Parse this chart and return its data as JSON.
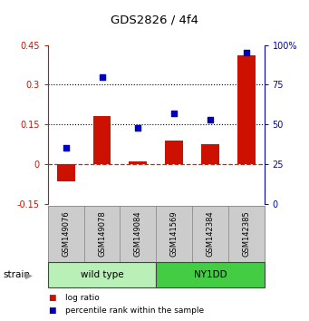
{
  "title": "GDS2826 / 4f4",
  "samples": [
    "GSM149076",
    "GSM149078",
    "GSM149084",
    "GSM141569",
    "GSM142384",
    "GSM142385"
  ],
  "log_ratios": [
    -0.065,
    0.18,
    0.01,
    0.09,
    0.075,
    0.41
  ],
  "percentile_ranks": [
    35,
    80,
    48,
    57,
    53,
    95
  ],
  "groups": [
    {
      "label": "wild type",
      "indices": [
        0,
        1,
        2
      ],
      "color": "#b8f0b8"
    },
    {
      "label": "NY1DD",
      "indices": [
        3,
        4,
        5
      ],
      "color": "#44cc44"
    }
  ],
  "ylim_left": [
    -0.15,
    0.45
  ],
  "ylim_right": [
    0,
    100
  ],
  "yticks_left": [
    -0.15,
    0.0,
    0.15,
    0.3,
    0.45
  ],
  "ytick_labels_left": [
    "-0.15",
    "0",
    "0.15",
    "0.3",
    "0.45"
  ],
  "yticks_right": [
    0,
    25,
    50,
    75,
    100
  ],
  "ytick_labels_right": [
    "0",
    "25",
    "50",
    "75",
    "100%"
  ],
  "hlines": [
    0.15,
    0.3
  ],
  "bar_color": "#cc1100",
  "dot_color": "#0000bb",
  "zero_line_color": "#dd2200",
  "grid_color": "black",
  "bg_color": "white",
  "sample_box_color": "#cccccc",
  "legend_items": [
    {
      "color": "#cc1100",
      "label": "log ratio"
    },
    {
      "color": "#0000bb",
      "label": "percentile rank within the sample"
    }
  ]
}
